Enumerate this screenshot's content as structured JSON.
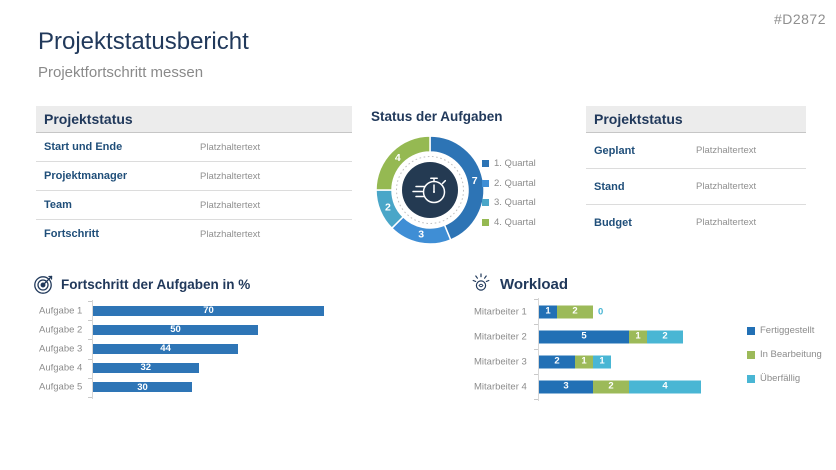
{
  "watermark": "#D2872",
  "header": {
    "title": "Projektstatusbericht",
    "subtitle": "Projektfortschritt messen"
  },
  "left_table": {
    "title": "Projektstatus",
    "rows": [
      {
        "label": "Start und Ende",
        "value": "Platzhaltertext"
      },
      {
        "label": "Projektmanager",
        "value": "Platzhaltertext"
      },
      {
        "label": "Team",
        "value": "Platzhaltertext"
      },
      {
        "label": "Fortschritt",
        "value": "Platzhaltertext"
      }
    ]
  },
  "right_table": {
    "title": "Projektstatus",
    "rows": [
      {
        "label": "Geplant",
        "value": "Platzhaltertext"
      },
      {
        "label": "Stand",
        "value": "Platzhaltertext"
      },
      {
        "label": "Budget",
        "value": "Platzhaltertext"
      }
    ]
  },
  "icons": {
    "progress_section": "target-icon",
    "workload_section": "workload-icon",
    "donut_center": "stopwatch-icon"
  },
  "colors": {
    "navy_text": "#21395B",
    "row_label_blue": "#1F4E79",
    "muted_gray": "#8C8C8C",
    "table_header_bg": "#ECECEC",
    "donut_center_navy": "#243A52"
  },
  "chart_data": [
    {
      "type": "pie",
      "subtype": "donut",
      "title": "Status der Aufgaben",
      "labels": [
        "1. Quartal",
        "2. Quartal",
        "3. Quartal",
        "4. Quartal"
      ],
      "values": [
        7,
        3,
        2,
        4
      ],
      "colors": [
        "#2D74B5",
        "#3F8ED5",
        "#4AA6C8",
        "#95B952"
      ],
      "legend_position": "right",
      "center_icon": "stopwatch"
    },
    {
      "type": "bar",
      "orientation": "horizontal",
      "title": "Fortschritt der Aufgaben in %",
      "categories": [
        "Aufgabe 1",
        "Aufgabe 2",
        "Aufgabe 3",
        "Aufgabe 4",
        "Aufgabe 5"
      ],
      "values": [
        70,
        50,
        44,
        32,
        30
      ],
      "bar_color": "#2E75B6",
      "value_labels": "inside-white",
      "xlim": [
        0,
        80
      ],
      "grid": false
    },
    {
      "type": "bar",
      "subtype": "stacked",
      "orientation": "horizontal",
      "title": "Workload",
      "categories": [
        "Mitarbeiter 1",
        "Mitarbeiter 2",
        "Mitarbeiter 3",
        "Mitarbeiter 4"
      ],
      "series": [
        {
          "name": "Fertiggestellt",
          "color": "#2270B5",
          "values": [
            1,
            5,
            2,
            3
          ]
        },
        {
          "name": "In Bearbeitung",
          "color": "#9CBA59",
          "values": [
            2,
            1,
            1,
            2
          ]
        },
        {
          "name": "Überfällig",
          "color": "#49B6D4",
          "values": [
            0,
            2,
            1,
            4
          ]
        }
      ],
      "legend_position": "right",
      "xlim": [
        0,
        10
      ],
      "grid": false
    }
  ]
}
